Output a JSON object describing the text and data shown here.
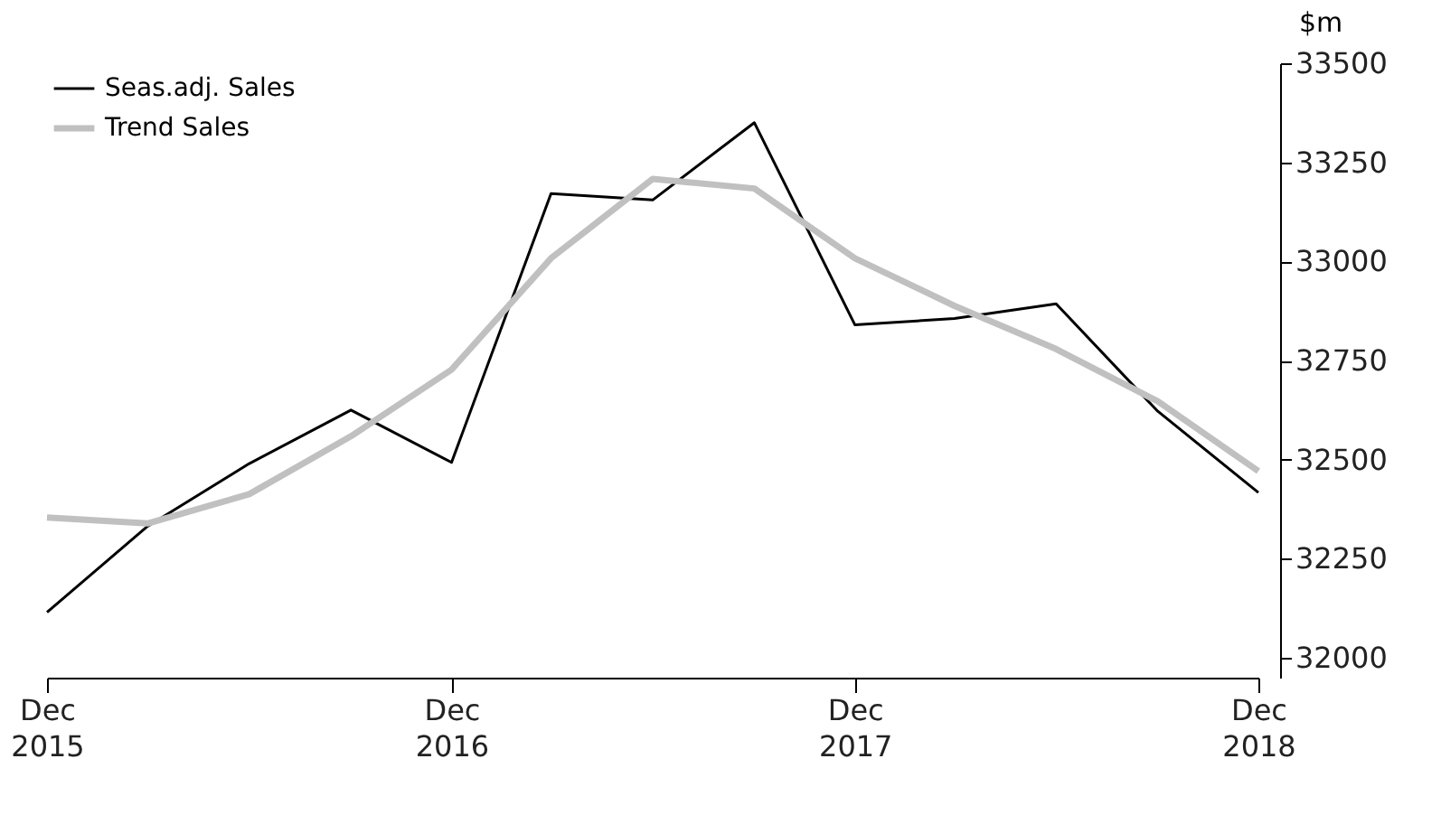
{
  "chart_data": {
    "type": "line",
    "ylabel": "$m",
    "x": [
      "2015-12",
      "2016-03",
      "2016-06",
      "2016-09",
      "2016-12",
      "2017-03",
      "2017-06",
      "2017-09",
      "2017-12",
      "2018-03",
      "2018-06",
      "2018-09",
      "2018-12"
    ],
    "series": [
      {
        "name": "Seas.adj. Sales",
        "color": "#000000",
        "values": [
          32115,
          32332,
          32490,
          32625,
          32493,
          33171,
          33155,
          33350,
          32840,
          32856,
          32893,
          32622,
          32417
        ]
      },
      {
        "name": "Trend Sales",
        "color": "#c0c0c0",
        "values": [
          32354,
          32339,
          32413,
          32559,
          32727,
          33008,
          33208,
          33184,
          33008,
          32888,
          32779,
          32647,
          32471
        ]
      }
    ],
    "xlim": [
      "2015-12",
      "2018-12"
    ],
    "xticks": [
      {
        "value": "2015-12",
        "label": "Dec 2015"
      },
      {
        "value": "2016-12",
        "label": "Dec 2016"
      },
      {
        "value": "2017-12",
        "label": "Dec 2017"
      },
      {
        "value": "2018-12",
        "label": "Dec 2018"
      }
    ],
    "ylim": [
      31950,
      33500
    ],
    "yticks": [
      32000,
      32250,
      32500,
      32750,
      33000,
      33250,
      33500
    ],
    "grid": false,
    "legend": "top left",
    "line_style": "solid",
    "marker": "none"
  }
}
